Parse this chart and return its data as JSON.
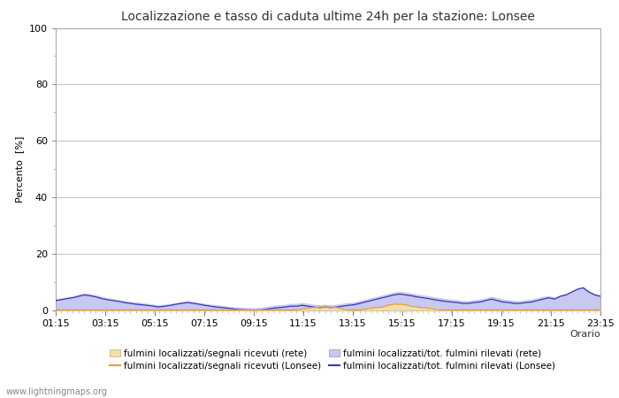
{
  "title": "Localizzazione e tasso di caduta ultime 24h per la stazione: Lonsee",
  "xlabel": "Orario",
  "ylabel": "Percento  [%]",
  "ylim": [
    0,
    100
  ],
  "yticks": [
    0,
    20,
    40,
    60,
    80,
    100
  ],
  "yticks_minor": [
    10,
    30,
    50,
    70,
    90
  ],
  "x_labels": [
    "01:15",
    "03:15",
    "05:15",
    "07:15",
    "09:15",
    "11:15",
    "13:15",
    "15:15",
    "17:15",
    "19:15",
    "21:15",
    "23:15"
  ],
  "background_color": "#ffffff",
  "plot_bg_color": "#ffffff",
  "grid_color": "#c8c8c8",
  "fill_total_rete_color": "#c8c8f0",
  "fill_signal_rete_color": "#f0dfa8",
  "line_lonsee_signal_color": "#e8a030",
  "line_lonsee_total_color": "#3838b8",
  "watermark": "www.lightningmaps.org",
  "legend_entries": [
    {
      "label": "fulmini localizzati/segnali ricevuti (rete)",
      "type": "fill",
      "color": "#f0dfa8"
    },
    {
      "label": "fulmini localizzati/segnali ricevuti (Lonsee)",
      "type": "line",
      "color": "#e8a030"
    },
    {
      "label": "fulmini localizzati/tot. fulmini rilevati (rete)",
      "type": "fill",
      "color": "#c8c8f0"
    },
    {
      "label": "fulmini localizzati/tot. fulmini rilevati (Lonsee)",
      "type": "line",
      "color": "#3838b8"
    }
  ],
  "total_rete": [
    4.2,
    4.5,
    4.8,
    5.2,
    5.8,
    6.2,
    5.9,
    5.5,
    5.0,
    4.5,
    4.2,
    3.8,
    3.5,
    3.2,
    3.0,
    2.8,
    2.5,
    2.2,
    2.0,
    2.2,
    2.5,
    2.8,
    3.2,
    3.5,
    3.2,
    2.8,
    2.5,
    2.2,
    2.0,
    1.8,
    1.5,
    1.3,
    1.2,
    1.0,
    1.0,
    1.0,
    1.2,
    1.5,
    1.8,
    2.0,
    2.2,
    2.5,
    2.5,
    2.8,
    2.5,
    2.2,
    2.0,
    2.2,
    2.0,
    2.2,
    2.5,
    2.8,
    3.0,
    3.5,
    4.0,
    4.5,
    5.0,
    5.5,
    6.0,
    6.5,
    6.8,
    6.5,
    6.2,
    5.8,
    5.5,
    5.2,
    4.8,
    4.5,
    4.2,
    4.0,
    3.8,
    3.5,
    3.5,
    3.8,
    4.0,
    4.5,
    5.0,
    4.5,
    4.0,
    3.8,
    3.5,
    3.5,
    3.8,
    4.0,
    4.5,
    5.0,
    5.2,
    4.8,
    5.5,
    6.0,
    7.0,
    8.0,
    8.5,
    7.0,
    6.0,
    5.5
  ],
  "signal_rete": [
    0.5,
    0.5,
    0.5,
    0.5,
    0.5,
    0.5,
    0.5,
    0.5,
    0.5,
    0.5,
    0.5,
    0.5,
    0.5,
    0.5,
    0.5,
    0.5,
    0.5,
    0.5,
    0.5,
    0.5,
    0.5,
    0.5,
    0.5,
    0.5,
    0.5,
    0.5,
    0.5,
    0.5,
    0.5,
    0.5,
    0.5,
    0.5,
    0.5,
    0.5,
    0.5,
    0.5,
    0.5,
    0.5,
    0.5,
    0.5,
    0.5,
    0.5,
    0.5,
    0.8,
    1.0,
    1.2,
    1.5,
    1.5,
    1.5,
    1.2,
    0.8,
    0.5,
    0.5,
    0.5,
    0.8,
    1.0,
    1.2,
    1.5,
    2.0,
    2.5,
    2.5,
    2.2,
    1.8,
    1.5,
    1.2,
    1.0,
    0.8,
    0.5,
    0.5,
    0.5,
    0.5,
    0.5,
    0.5,
    0.5,
    0.5,
    0.5,
    0.5,
    0.5,
    0.5,
    0.5,
    0.5,
    0.5,
    0.5,
    0.5,
    0.5,
    0.5,
    0.5,
    0.5,
    0.5,
    0.5,
    0.5,
    0.5,
    0.5,
    0.5,
    0.5,
    0.5
  ],
  "lonsee_total": [
    3.5,
    3.8,
    4.2,
    4.5,
    5.0,
    5.5,
    5.2,
    4.8,
    4.2,
    3.8,
    3.5,
    3.2,
    2.8,
    2.5,
    2.2,
    2.0,
    1.8,
    1.5,
    1.2,
    1.5,
    1.8,
    2.2,
    2.5,
    2.8,
    2.5,
    2.2,
    1.8,
    1.5,
    1.2,
    1.0,
    0.8,
    0.5,
    0.3,
    0.2,
    0.1,
    0.1,
    0.2,
    0.5,
    0.8,
    1.0,
    1.2,
    1.5,
    1.5,
    1.8,
    1.5,
    1.2,
    1.0,
    1.2,
    1.0,
    1.2,
    1.5,
    1.8,
    2.0,
    2.5,
    3.0,
    3.5,
    4.0,
    4.5,
    5.0,
    5.5,
    5.8,
    5.5,
    5.2,
    4.8,
    4.5,
    4.2,
    3.8,
    3.5,
    3.2,
    3.0,
    2.8,
    2.5,
    2.5,
    2.8,
    3.0,
    3.5,
    4.0,
    3.5,
    3.0,
    2.8,
    2.5,
    2.5,
    2.8,
    3.0,
    3.5,
    4.0,
    4.5,
    4.0,
    5.0,
    5.5,
    6.5,
    7.5,
    8.0,
    6.5,
    5.5,
    5.0
  ],
  "lonsee_signal": [
    0.2,
    0.2,
    0.2,
    0.2,
    0.2,
    0.2,
    0.2,
    0.2,
    0.2,
    0.2,
    0.2,
    0.2,
    0.2,
    0.2,
    0.2,
    0.2,
    0.2,
    0.2,
    0.2,
    0.2,
    0.2,
    0.2,
    0.2,
    0.2,
    0.2,
    0.2,
    0.2,
    0.2,
    0.2,
    0.2,
    0.2,
    0.2,
    0.2,
    0.2,
    0.2,
    0.2,
    0.2,
    0.2,
    0.2,
    0.2,
    0.2,
    0.2,
    0.2,
    0.5,
    0.8,
    1.0,
    1.2,
    1.2,
    1.2,
    1.0,
    0.5,
    0.2,
    0.2,
    0.2,
    0.5,
    0.8,
    1.0,
    1.2,
    1.8,
    2.2,
    2.2,
    2.0,
    1.5,
    1.2,
    1.0,
    0.8,
    0.5,
    0.2,
    0.2,
    0.2,
    0.2,
    0.2,
    0.2,
    0.2,
    0.2,
    0.2,
    0.2,
    0.2,
    0.2,
    0.2,
    0.2,
    0.2,
    0.2,
    0.2,
    0.2,
    0.2,
    0.2,
    0.2,
    0.2,
    0.2,
    0.2,
    0.2,
    0.2,
    0.2,
    0.2,
    0.2
  ]
}
